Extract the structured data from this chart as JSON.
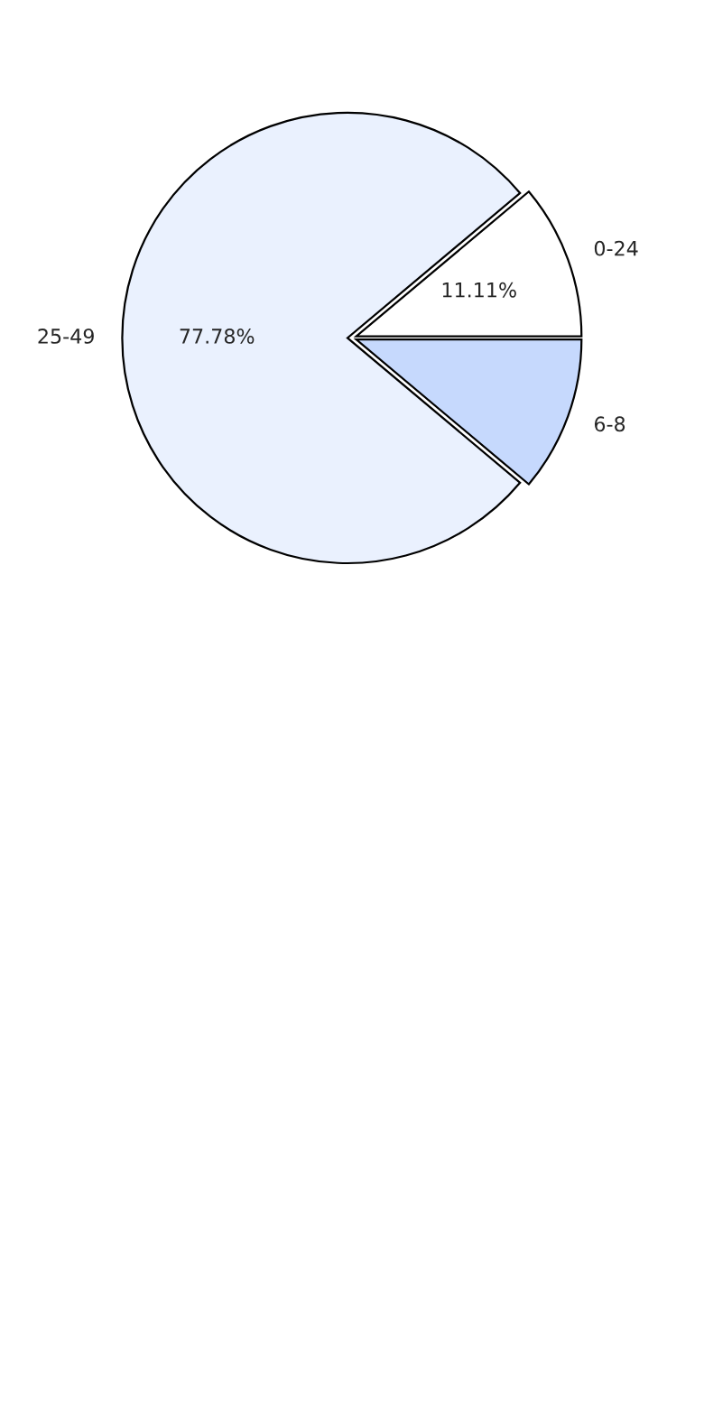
{
  "chart_data": {
    "type": "pie",
    "categories": [
      "0-24",
      "25-49",
      "6-8"
    ],
    "values": [
      11.11,
      77.78,
      11.11
    ],
    "colors": [
      "#ffffff",
      "#eaf1fe",
      "#c6d9fd"
    ],
    "value_labels": [
      "11.11%",
      "77.78%",
      null
    ]
  }
}
